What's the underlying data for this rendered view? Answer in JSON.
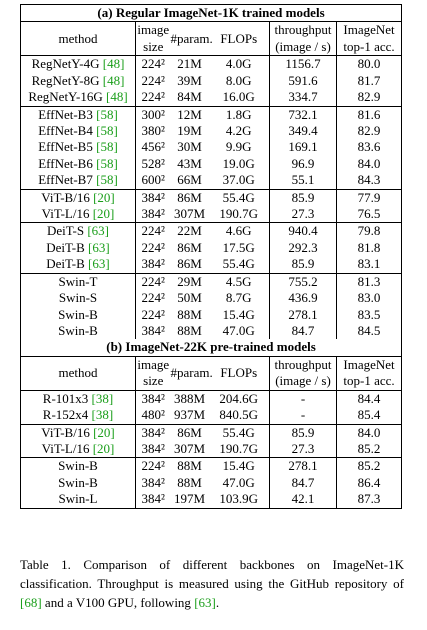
{
  "sections": [
    {
      "title": "(a) Regular ImageNet-1K trained models",
      "header": {
        "method": "method",
        "size": [
          "image",
          "size"
        ],
        "params": "#param.",
        "flops": "FLOPs",
        "throughput": [
          "throughput",
          "(image / s)"
        ],
        "acc": [
          "ImageNet",
          "top-1 acc."
        ]
      },
      "groups": [
        [
          {
            "method": "RegNetY-4G",
            "ref": "[48]",
            "cells": [
              "224²",
              "21M",
              "4.0G",
              "1156.7",
              "80.0"
            ]
          },
          {
            "method": "RegNetY-8G",
            "ref": "[48]",
            "cells": [
              "224²",
              "39M",
              "8.0G",
              "591.6",
              "81.7"
            ]
          },
          {
            "method": "RegNetY-16G",
            "ref": "[48]",
            "cells": [
              "224²",
              "84M",
              "16.0G",
              "334.7",
              "82.9"
            ]
          }
        ],
        [
          {
            "method": "EffNet-B3",
            "ref": "[58]",
            "cells": [
              "300²",
              "12M",
              "1.8G",
              "732.1",
              "81.6"
            ]
          },
          {
            "method": "EffNet-B4",
            "ref": "[58]",
            "cells": [
              "380²",
              "19M",
              "4.2G",
              "349.4",
              "82.9"
            ]
          },
          {
            "method": "EffNet-B5",
            "ref": "[58]",
            "cells": [
              "456²",
              "30M",
              "9.9G",
              "169.1",
              "83.6"
            ]
          },
          {
            "method": "EffNet-B6",
            "ref": "[58]",
            "cells": [
              "528²",
              "43M",
              "19.0G",
              "96.9",
              "84.0"
            ]
          },
          {
            "method": "EffNet-B7",
            "ref": "[58]",
            "cells": [
              "600²",
              "66M",
              "37.0G",
              "55.1",
              "84.3"
            ]
          }
        ],
        [
          {
            "method": "ViT-B/16",
            "ref": "[20]",
            "cells": [
              "384²",
              "86M",
              "55.4G",
              "85.9",
              "77.9"
            ]
          },
          {
            "method": "ViT-L/16",
            "ref": "[20]",
            "cells": [
              "384²",
              "307M",
              "190.7G",
              "27.3",
              "76.5"
            ]
          }
        ],
        [
          {
            "method": "DeiT-S",
            "ref": "[63]",
            "cells": [
              "224²",
              "22M",
              "4.6G",
              "940.4",
              "79.8"
            ]
          },
          {
            "method": "DeiT-B",
            "ref": "[63]",
            "cells": [
              "224²",
              "86M",
              "17.5G",
              "292.3",
              "81.8"
            ]
          },
          {
            "method": "DeiT-B",
            "ref": "[63]",
            "cells": [
              "384²",
              "86M",
              "55.4G",
              "85.9",
              "83.1"
            ]
          }
        ],
        [
          {
            "method": "Swin-T",
            "cells": [
              "224²",
              "29M",
              "4.5G",
              "755.2",
              "81.3"
            ]
          },
          {
            "method": "Swin-S",
            "cells": [
              "224²",
              "50M",
              "8.7G",
              "436.9",
              "83.0"
            ]
          },
          {
            "method": "Swin-B",
            "cells": [
              "224²",
              "88M",
              "15.4G",
              "278.1",
              "83.5"
            ]
          },
          {
            "method": "Swin-B",
            "cells": [
              "384²",
              "88M",
              "47.0G",
              "84.7",
              "84.5"
            ]
          }
        ]
      ]
    },
    {
      "title": "(b) ImageNet-22K pre-trained models",
      "header": {
        "method": "method",
        "size": [
          "image",
          "size"
        ],
        "params": "#param.",
        "flops": "FLOPs",
        "throughput": [
          "throughput",
          "(image / s)"
        ],
        "acc": [
          "ImageNet",
          "top-1 acc."
        ]
      },
      "groups": [
        [
          {
            "method": "R-101x3",
            "ref": "[38]",
            "cells": [
              "384²",
              "388M",
              "204.6G",
              "-",
              "84.4"
            ]
          },
          {
            "method": "R-152x4",
            "ref": "[38]",
            "cells": [
              "480²",
              "937M",
              "840.5G",
              "-",
              "85.4"
            ]
          }
        ],
        [
          {
            "method": "ViT-B/16",
            "ref": "[20]",
            "cells": [
              "384²",
              "86M",
              "55.4G",
              "85.9",
              "84.0"
            ]
          },
          {
            "method": "ViT-L/16",
            "ref": "[20]",
            "cells": [
              "384²",
              "307M",
              "190.7G",
              "27.3",
              "85.2"
            ]
          }
        ],
        [
          {
            "method": "Swin-B",
            "cells": [
              "224²",
              "88M",
              "15.4G",
              "278.1",
              "85.2"
            ]
          },
          {
            "method": "Swin-B",
            "cells": [
              "384²",
              "88M",
              "47.0G",
              "84.7",
              "86.4"
            ]
          },
          {
            "method": "Swin-L",
            "cells": [
              "384²",
              "197M",
              "103.9G",
              "42.1",
              "87.3"
            ]
          }
        ]
      ]
    }
  ],
  "caption": [
    "Table 1. Comparison of different backbones on ImageNet-1K classification. Throughput is measured using the GitHub repository of ",
    "[68]",
    " and a V100 GPU, following ",
    "[63]",
    "."
  ]
}
